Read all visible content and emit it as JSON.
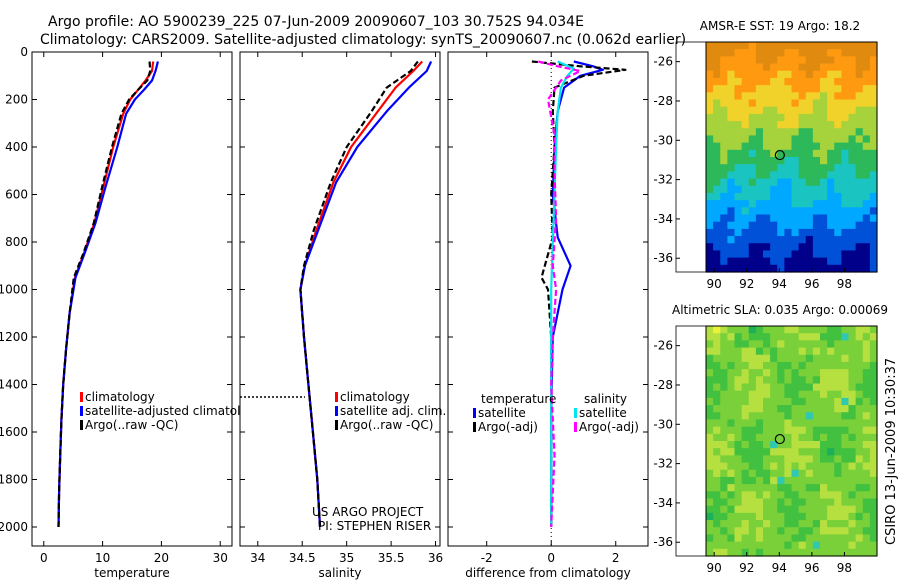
{
  "header": {
    "line1": "Argo profile: AO 5900239_225 07-Jun-2009 20090607_103 30.752S 94.034E",
    "line2": "Climatology: CARS2009. Satellite-adjusted climatology: synTS_20090607.nc (0.062d earlier)"
  },
  "side_note": "CSIRO 13-Jun-2009 10:30:37",
  "chart_data": [
    {
      "id": "temperature",
      "type": "line",
      "xlabel": "temperature",
      "ylabel": "",
      "xlim": [
        -2,
        32
      ],
      "ylim": [
        2080,
        0
      ],
      "xticks": [
        0,
        10,
        20,
        30
      ],
      "yticks": [
        0,
        200,
        400,
        600,
        800,
        1000,
        1200,
        1400,
        1600,
        1800,
        2000
      ],
      "legend": [
        {
          "label": "climatology",
          "color": "#ff0000"
        },
        {
          "label": "satellite-adjusted climatology",
          "color": "#0000ff"
        },
        {
          "label": "Argo(..raw -QC)",
          "color": "#000000"
        }
      ],
      "series": [
        {
          "name": "climatology",
          "color": "#ff0000",
          "dash": "",
          "x": [
            18.6,
            18.4,
            17.3,
            16.0,
            14.7,
            13.5,
            11.8,
            10.2,
            8.6,
            6.8,
            5.3,
            4.4,
            3.8,
            3.3,
            3.0,
            2.8,
            2.6,
            2.5
          ],
          "y": [
            40,
            80,
            120,
            160,
            200,
            260,
            400,
            560,
            720,
            850,
            950,
            1100,
            1250,
            1400,
            1550,
            1700,
            1850,
            2000
          ]
        },
        {
          "name": "satellite-adjusted climatology",
          "color": "#0000ff",
          "dash": "",
          "x": [
            19.4,
            19.0,
            18.4,
            17.0,
            15.5,
            14.0,
            12.5,
            10.6,
            8.8,
            6.9,
            5.4,
            4.4,
            3.8,
            3.3,
            3.0,
            2.8,
            2.6,
            2.5
          ],
          "y": [
            40,
            80,
            120,
            160,
            200,
            260,
            400,
            560,
            720,
            850,
            950,
            1100,
            1250,
            1400,
            1550,
            1700,
            1850,
            2000
          ]
        },
        {
          "name": "Argo(..raw -QC)",
          "color": "#000000",
          "dash": "6,3",
          "x": [
            18.0,
            18.1,
            17.6,
            16.0,
            14.5,
            13.2,
            11.6,
            10.0,
            8.5,
            6.7,
            5.1,
            4.4,
            3.8,
            3.3,
            3.0,
            2.8,
            2.6,
            2.5
          ],
          "y": [
            40,
            80,
            120,
            160,
            200,
            260,
            400,
            560,
            720,
            850,
            950,
            1100,
            1250,
            1400,
            1550,
            1700,
            1850,
            2000
          ]
        }
      ]
    },
    {
      "id": "salinity",
      "type": "line",
      "xlabel": "salinity",
      "ylabel": "",
      "xlim": [
        33.8,
        36.05
      ],
      "ylim": [
        2080,
        0
      ],
      "xticks": [
        34,
        34.5,
        35,
        35.5,
        36
      ],
      "xtick_labels": [
        "34",
        "34.5",
        "35",
        "35.5",
        "36"
      ],
      "legend": [
        {
          "label": "climatology",
          "color": "#ff0000"
        },
        {
          "label": "satellite adj. clim.",
          "color": "#0000ff"
        },
        {
          "label": "Argo(..raw -QC)",
          "color": "#000000"
        }
      ],
      "annotations": [
        "US ARGO PROJECT",
        "PI: STEPHEN RISER"
      ],
      "series": [
        {
          "name": "climatology",
          "color": "#ff0000",
          "dash": "",
          "x": [
            35.85,
            35.75,
            35.55,
            35.35,
            35.05,
            34.85,
            34.66,
            34.53,
            34.48,
            34.52,
            34.57,
            34.62,
            34.67,
            34.7
          ],
          "y": [
            40,
            80,
            150,
            250,
            400,
            550,
            750,
            900,
            1000,
            1200,
            1400,
            1600,
            1800,
            2000
          ]
        },
        {
          "name": "satellite adj. clim.",
          "color": "#0000ff",
          "dash": "",
          "x": [
            35.95,
            35.9,
            35.7,
            35.45,
            35.12,
            34.88,
            34.68,
            34.53,
            34.48,
            34.52,
            34.57,
            34.62,
            34.67,
            34.7
          ],
          "y": [
            40,
            80,
            150,
            250,
            400,
            550,
            750,
            900,
            1000,
            1200,
            1400,
            1600,
            1800,
            2000
          ]
        },
        {
          "name": "Argo(..raw -QC)",
          "color": "#000000",
          "dash": "6,3",
          "x": [
            35.8,
            35.72,
            35.45,
            35.28,
            35.0,
            34.82,
            34.63,
            34.52,
            34.48,
            34.52,
            34.57,
            34.62,
            34.67,
            34.7
          ],
          "y": [
            40,
            80,
            150,
            250,
            400,
            550,
            750,
            900,
            1000,
            1200,
            1400,
            1600,
            1800,
            2000
          ]
        }
      ]
    },
    {
      "id": "difference",
      "type": "line",
      "xlabel": "difference from climatology",
      "ylabel": "",
      "xlim": [
        -3.2,
        3.0
      ],
      "ylim": [
        2080,
        0
      ],
      "xticks": [
        -2,
        0,
        2
      ],
      "legend_titles": [
        "temperature",
        "salinity"
      ],
      "legend": [
        {
          "label": "satellite",
          "color": "#0000ff",
          "group": "temperature"
        },
        {
          "label": "Argo(-adj)",
          "color": "#000000",
          "group": "temperature"
        },
        {
          "label": "satellite",
          "color": "#00e5ee",
          "group": "salinity"
        },
        {
          "label": "Argo(-adj)",
          "color": "#ff00ff",
          "group": "salinity"
        }
      ],
      "series": [
        {
          "name": "temperature satellite",
          "color": "#0000ff",
          "dash": "",
          "x": [
            0.7,
            1.3,
            1.6,
            0.9,
            0.4,
            0.2,
            0.1,
            0.05,
            0.2,
            0.6,
            0.35,
            0.05,
            0.0,
            0.0
          ],
          "y": [
            40,
            60,
            75,
            100,
            150,
            250,
            400,
            600,
            780,
            900,
            1000,
            1200,
            1500,
            2000
          ]
        },
        {
          "name": "temperature Argo(-adj)",
          "color": "#000000",
          "dash": "6,3",
          "x": [
            -0.6,
            0.9,
            2.3,
            1.0,
            0.1,
            0.05,
            0.1,
            0.0,
            0.05,
            -0.3,
            -0.1,
            0.0,
            0.0,
            0.0
          ],
          "y": [
            40,
            60,
            75,
            100,
            150,
            250,
            400,
            600,
            780,
            950,
            1000,
            1200,
            1500,
            2000
          ]
        },
        {
          "name": "salinity satellite",
          "color": "#00e5ee",
          "dash": "",
          "x": [
            0.2,
            0.7,
            0.5,
            0.3,
            0.2,
            0.15,
            0.1,
            0.05,
            0.0,
            0.0,
            0.0,
            0.0,
            0.0
          ],
          "y": [
            40,
            70,
            100,
            150,
            250,
            400,
            600,
            800,
            1000,
            1200,
            1400,
            1700,
            2000
          ]
        },
        {
          "name": "salinity Argo(-adj)",
          "color": "#ff00ff",
          "dash": "6,3",
          "x": [
            -0.4,
            0.2,
            0.9,
            0.3,
            -0.1,
            0.1,
            0.1,
            0.15,
            0.05,
            0.15,
            0.05,
            0.0,
            0.1,
            0.0
          ],
          "y": [
            40,
            60,
            80,
            120,
            200,
            350,
            500,
            700,
            900,
            1000,
            1200,
            1400,
            1700,
            2000
          ]
        }
      ]
    },
    {
      "id": "sst_map",
      "type": "heatmap",
      "title": "AMSR-E SST: 19 Argo: 18.2",
      "xlim": [
        89.5,
        100
      ],
      "ylim": [
        -36.7,
        -25
      ],
      "xticks": [
        90,
        92,
        94,
        96,
        98
      ],
      "yticks": [
        -26,
        -28,
        -30,
        -32,
        -34,
        -36
      ],
      "marker": {
        "lon": 94.034,
        "lat": -30.752
      },
      "palette": [
        "#00008b",
        "#0050d8",
        "#00a8ff",
        "#1ac4c0",
        "#2db85a",
        "#a6d23c",
        "#f0d22a",
        "#ff9a10",
        "#e08a10"
      ]
    },
    {
      "id": "sla_map",
      "type": "heatmap",
      "title": "Altimetric SLA: 0.035 Argo: 0.00069",
      "xlim": [
        89.5,
        100
      ],
      "ylim": [
        -36.7,
        -25
      ],
      "xticks": [
        90,
        92,
        94,
        96,
        98
      ],
      "yticks": [
        -26,
        -28,
        -30,
        -32,
        -34,
        -36
      ],
      "marker": {
        "lon": 94.034,
        "lat": -30.752
      },
      "palette": [
        "#1db05a",
        "#42c040",
        "#7ad038",
        "#b5e040",
        "#ecf23a",
        "#30c8b0"
      ]
    }
  ]
}
